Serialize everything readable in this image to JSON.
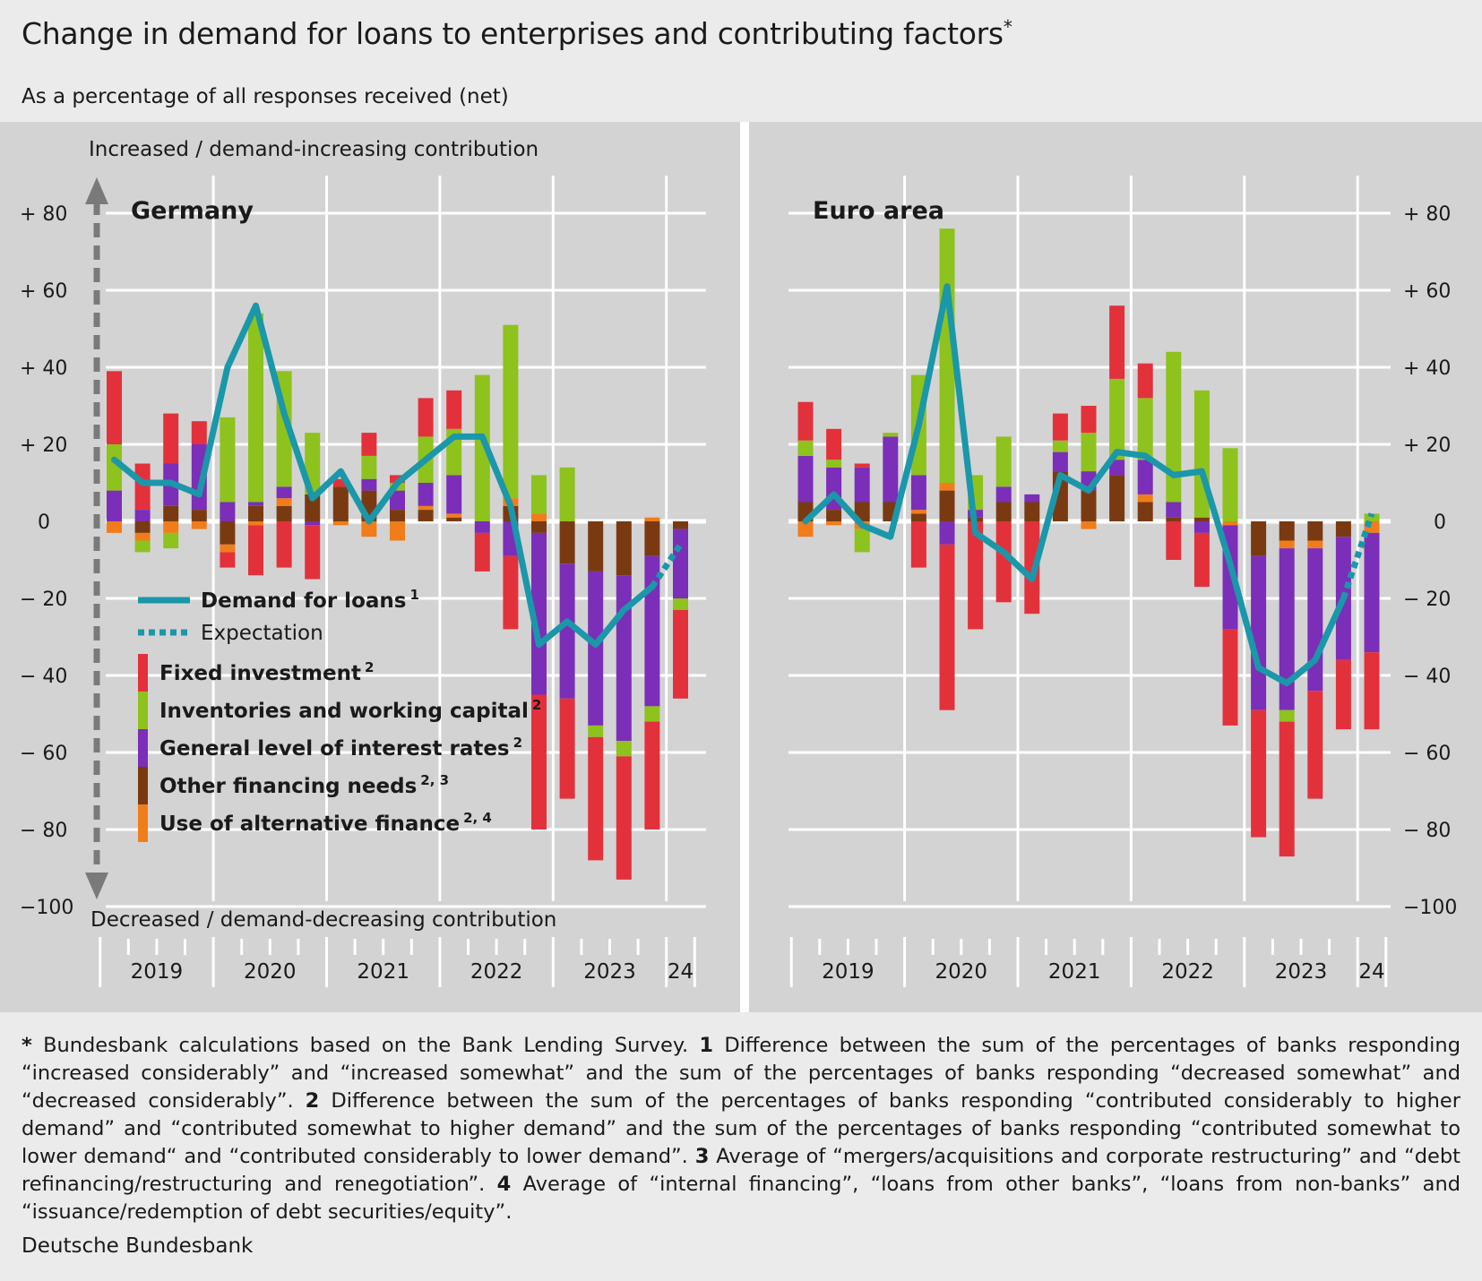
{
  "title": "Change in demand for loans to enterprises and contributing factors",
  "title_marker": "*",
  "subtitle": "As a percentage of all responses received (net)",
  "footnotes": [
    {
      "mark": "*",
      "text": " Bundesbank calculations based on the Bank Lending Survey. "
    },
    {
      "mark": "1",
      "text": " Difference between the sum of the percentages of banks responding “increased considerably” and “increased somewhat” and the sum of the percentages of banks responding “decreased somewhat” and “decreased considerably”. "
    },
    {
      "mark": "2",
      "text": " Difference between the sum of the percentages of banks responding “contributed considerably to higher demand” and “contributed somewhat to higher demand” and the sum of the percentages of banks responding “contributed some­what to lower demand“ and “contributed considerably to lower demand”. "
    },
    {
      "mark": "3",
      "text": " Average of “mergers/acquisitions and corporate restructur­ing” and “debt refinancing/restructuring and renegotiation”. "
    },
    {
      "mark": "4",
      "text": " Average of “internal financing”, “loans from other banks”, “loans from non-banks” and “issuance/redemption of debt securities/equity”."
    }
  ],
  "source": "Deutsche Bundesbank",
  "colors": {
    "background": "#ebebeb",
    "plot_background": "#d3d3d3",
    "demand_line": "#1a97a9",
    "fixed_investment": "#e3313b",
    "inventories": "#8ec21c",
    "interest_rates": "#7b2eb8",
    "other_financing": "#7a3a11",
    "alternative_finance": "#f07d1a",
    "arrow": "#7a7a7a"
  },
  "chart_data": [
    {
      "type": "bar",
      "stacked": true,
      "panel_title": "Germany",
      "top_label": "Increased / demand-increasing contribution",
      "bottom_label": "Decreased / demand-decreasing contribution",
      "ylim": [
        -100,
        90
      ],
      "yticks": [
        80,
        60,
        40,
        20,
        0,
        -20,
        -40,
        -60,
        -80,
        -100
      ],
      "ytick_labels": [
        "+  80",
        "+  60",
        "+  40",
        "+  20",
        "0",
        "−  20",
        "−  40",
        "−  60",
        "−  80",
        "−100"
      ],
      "x_group_labels": [
        "2019",
        "2020",
        "2021",
        "2022",
        "2023",
        "24"
      ],
      "categories": [
        "2019Q1",
        "2019Q2",
        "2019Q3",
        "2019Q4",
        "2020Q1",
        "2020Q2",
        "2020Q3",
        "2020Q4",
        "2021Q1",
        "2021Q2",
        "2021Q3",
        "2021Q4",
        "2022Q1",
        "2022Q2",
        "2022Q3",
        "2022Q4",
        "2023Q1",
        "2023Q2",
        "2023Q3",
        "2023Q4",
        "2024Q1"
      ],
      "legend": [
        {
          "key": "demand",
          "label": "Demand for loans",
          "sup": "1",
          "style": "line"
        },
        {
          "key": "expectation",
          "label": "Expectation",
          "sup": "",
          "style": "dotted"
        },
        {
          "key": "fixed_investment",
          "label": "Fixed investment",
          "sup": "2",
          "style": "swatch"
        },
        {
          "key": "inventories",
          "label": "Inventories and working capital",
          "sup": "2",
          "style": "swatch"
        },
        {
          "key": "interest_rates",
          "label": "General level of interest rates",
          "sup": "2",
          "style": "swatch"
        },
        {
          "key": "other_financing",
          "label": "Other financing needs",
          "sup": "2, 3",
          "style": "swatch"
        },
        {
          "key": "alternative_finance",
          "label": "Use of alternative finance",
          "sup": "2, 4",
          "style": "swatch"
        }
      ],
      "series": [
        {
          "key": "other_financing",
          "name": "Other financing needs",
          "values": [
            0,
            -3,
            4,
            3,
            -6,
            4,
            4,
            7,
            9,
            8,
            3,
            3,
            1,
            0,
            4,
            -3,
            -11,
            -13,
            -14,
            -9,
            -2
          ]
        },
        {
          "key": "alternative_finance",
          "name": "Use of alternative finance",
          "values": [
            -3,
            -2,
            -3,
            -2,
            -2,
            -1,
            2,
            0,
            -1,
            -4,
            -5,
            1,
            1,
            0,
            2,
            2,
            0,
            0,
            0,
            1,
            0
          ]
        },
        {
          "key": "interest_rates",
          "name": "General level of interest rates",
          "values": [
            8,
            3,
            11,
            17,
            5,
            1,
            3,
            -1,
            0,
            3,
            5,
            6,
            10,
            -3,
            -9,
            -42,
            -35,
            -40,
            -43,
            -39,
            -18
          ]
        },
        {
          "key": "inventories",
          "name": "Inventories and working capital",
          "values": [
            12,
            -3,
            -4,
            0,
            22,
            49,
            30,
            16,
            0,
            6,
            2,
            12,
            12,
            38,
            45,
            10,
            14,
            -3,
            -4,
            -4,
            -3
          ]
        },
        {
          "key": "fixed_investment",
          "name": "Fixed investment",
          "values": [
            19,
            12,
            13,
            6,
            -4,
            -13,
            -12,
            -14,
            2,
            6,
            2,
            10,
            10,
            -10,
            -19,
            -35,
            -26,
            -32,
            -32,
            -28,
            -23
          ]
        }
      ],
      "demand": [
        16,
        10,
        10,
        7,
        40,
        56,
        28,
        6,
        13,
        0,
        10,
        16,
        22,
        22,
        4,
        -32,
        -26,
        -32,
        -23,
        -17
      ],
      "expectation": [
        -17,
        -6
      ]
    },
    {
      "type": "bar",
      "stacked": true,
      "panel_title": "Euro area",
      "ylim": [
        -100,
        90
      ],
      "yticks": [
        80,
        60,
        40,
        20,
        0,
        -20,
        -40,
        -60,
        -80,
        -100
      ],
      "ytick_labels": [
        "+  80",
        "+  60",
        "+  40",
        "+  20",
        "0",
        "−  20",
        "−  40",
        "−  60",
        "−  80",
        "−100"
      ],
      "x_group_labels": [
        "2019",
        "2020",
        "2021",
        "2022",
        "2023",
        "24"
      ],
      "categories": [
        "2019Q1",
        "2019Q2",
        "2019Q3",
        "2019Q4",
        "2020Q1",
        "2020Q2",
        "2020Q3",
        "2020Q4",
        "2021Q1",
        "2021Q2",
        "2021Q3",
        "2021Q4",
        "2022Q1",
        "2022Q2",
        "2022Q3",
        "2022Q4",
        "2023Q1",
        "2023Q2",
        "2023Q3",
        "2023Q4",
        "2024Q1"
      ],
      "series": [
        {
          "key": "other_financing",
          "name": "Other financing needs",
          "values": [
            5,
            3,
            5,
            5,
            2,
            8,
            1,
            5,
            5,
            13,
            8,
            12,
            5,
            1,
            1,
            0,
            -9,
            -5,
            -5,
            -4,
            0
          ]
        },
        {
          "key": "alternative_finance",
          "name": "Use of alternative finance",
          "values": [
            -4,
            -1,
            -2,
            0,
            1,
            2,
            0,
            0,
            0,
            0,
            -2,
            0,
            2,
            0,
            0,
            -1,
            0,
            -2,
            -2,
            0,
            -3
          ]
        },
        {
          "key": "interest_rates",
          "name": "General level of interest rates",
          "values": [
            12,
            11,
            9,
            17,
            9,
            -6,
            2,
            4,
            2,
            5,
            5,
            4,
            9,
            4,
            -3,
            -27,
            -40,
            -42,
            -37,
            -32,
            -31
          ]
        },
        {
          "key": "inventories",
          "name": "Inventories and working capital",
          "values": [
            4,
            2,
            -6,
            1,
            26,
            66,
            9,
            13,
            0,
            3,
            10,
            21,
            16,
            39,
            33,
            19,
            0,
            -3,
            0,
            0,
            2
          ]
        },
        {
          "key": "fixed_investment",
          "name": "Fixed investment",
          "values": [
            10,
            8,
            1,
            0,
            -12,
            -43,
            -28,
            -21,
            -24,
            7,
            7,
            19,
            9,
            -10,
            -14,
            -25,
            -33,
            -35,
            -28,
            -18,
            -20
          ]
        }
      ],
      "demand": [
        0,
        7,
        -1,
        -4,
        25,
        61,
        -3,
        -8,
        -15,
        12,
        8,
        18,
        17,
        12,
        13,
        -11,
        -38,
        -42,
        -36,
        -20
      ],
      "expectation": [
        -20,
        2
      ]
    }
  ]
}
